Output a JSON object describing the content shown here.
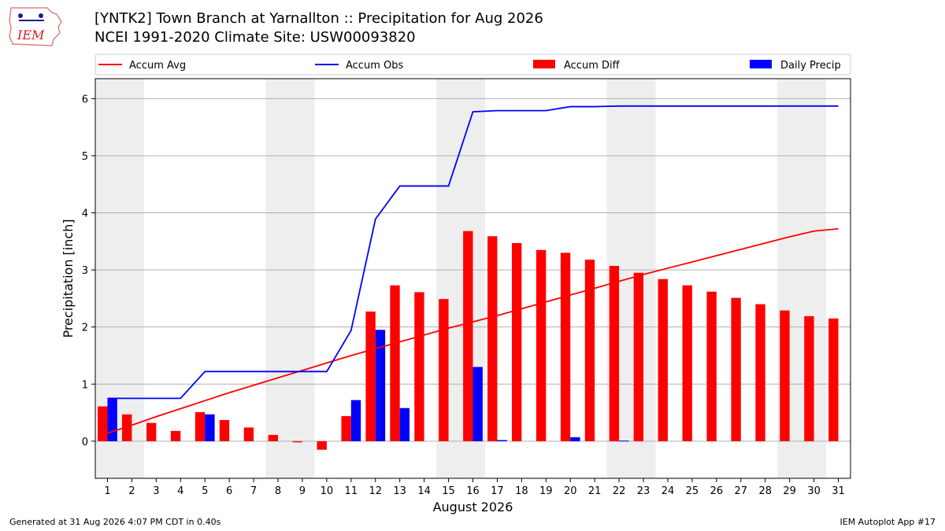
{
  "header": {
    "title_line1": "[YNTK2] Town Branch at Yarnallton :: Precipitation for Aug 2026",
    "title_line2": "NCEI 1991-2020 Climate Site: USW00093820",
    "logo_text": "IEM"
  },
  "footer": {
    "generated": "Generated at 31 Aug 2026 4:07 PM CDT in 0.40s",
    "app": "IEM Autoplot App #17"
  },
  "chart_data": {
    "type": "bar",
    "xlabel": "August 2026",
    "ylabel": "Precipitation [inch]",
    "ylim": [
      -0.65,
      6.35
    ],
    "xlim": [
      0.5,
      31.5
    ],
    "yticks": [
      0,
      1,
      2,
      3,
      4,
      5,
      6
    ],
    "grid": true,
    "legend_placement": "top, above plot",
    "weekend_shading": [
      [
        0.5,
        2.5
      ],
      [
        7.5,
        9.5
      ],
      [
        14.5,
        16.5
      ],
      [
        21.5,
        23.5
      ],
      [
        28.5,
        30.5
      ]
    ],
    "x": [
      1,
      2,
      3,
      4,
      5,
      6,
      7,
      8,
      9,
      10,
      11,
      12,
      13,
      14,
      15,
      16,
      17,
      18,
      19,
      20,
      21,
      22,
      23,
      24,
      25,
      26,
      27,
      28,
      29,
      30,
      31
    ],
    "series": [
      {
        "name": "Accum Avg",
        "kind": "line",
        "color": "#ff0000",
        "values": [
          0.14,
          0.28,
          0.43,
          0.57,
          0.71,
          0.85,
          0.98,
          1.11,
          1.24,
          1.37,
          1.5,
          1.62,
          1.74,
          1.86,
          1.98,
          2.09,
          2.2,
          2.32,
          2.44,
          2.56,
          2.68,
          2.8,
          2.92,
          3.03,
          3.14,
          3.25,
          3.36,
          3.47,
          3.58,
          3.68,
          3.72
        ]
      },
      {
        "name": "Accum Obs",
        "kind": "line",
        "color": "#0000ff",
        "values": [
          0.75,
          0.75,
          0.75,
          0.75,
          1.22,
          1.22,
          1.22,
          1.22,
          1.22,
          1.22,
          1.94,
          3.89,
          4.47,
          4.47,
          4.47,
          5.77,
          5.79,
          5.79,
          5.79,
          5.86,
          5.86,
          5.87,
          5.87,
          5.87,
          5.87,
          5.87,
          5.87,
          5.87,
          5.87,
          5.87,
          5.87
        ]
      },
      {
        "name": "Accum Diff",
        "kind": "bar",
        "color": "#ff0000",
        "values": [
          0.61,
          0.47,
          0.32,
          0.18,
          0.51,
          0.37,
          0.24,
          0.11,
          -0.02,
          -0.15,
          0.44,
          2.27,
          2.73,
          2.61,
          2.49,
          3.68,
          3.59,
          3.47,
          3.35,
          3.3,
          3.18,
          3.07,
          2.95,
          2.84,
          2.73,
          2.62,
          2.51,
          2.4,
          2.29,
          2.19,
          2.15
        ]
      },
      {
        "name": "Daily Precip",
        "kind": "bar",
        "color": "#0000ff",
        "values": [
          0.75,
          0,
          0,
          0,
          0.47,
          0,
          0,
          0,
          0,
          0,
          0.72,
          1.95,
          0.58,
          0,
          0,
          1.3,
          0.02,
          0,
          0,
          0.07,
          0,
          0.01,
          0,
          0,
          0,
          0,
          0,
          0,
          0,
          0,
          0
        ]
      }
    ]
  }
}
